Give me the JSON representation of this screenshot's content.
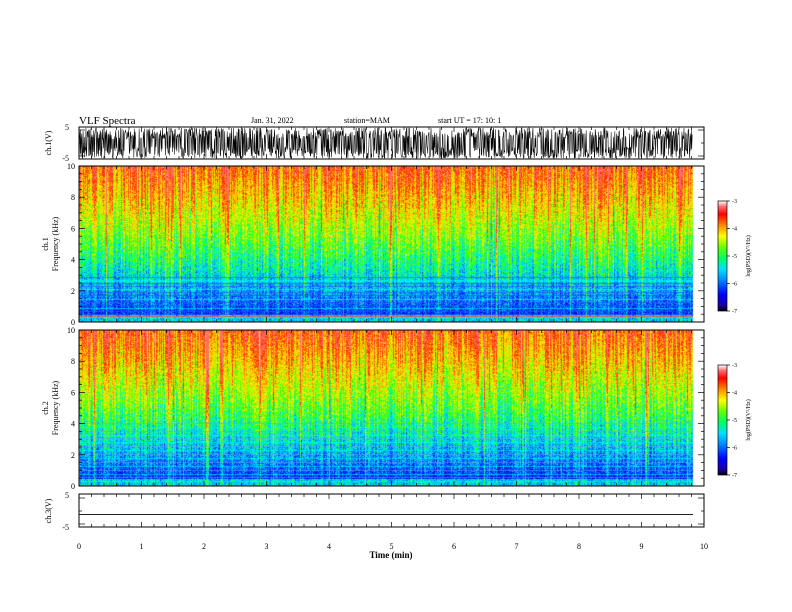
{
  "header": {
    "title": "VLF Spectra",
    "date": "Jan. 31, 2022",
    "station": "station=MAM",
    "start": "start UT =   17: 10: 1"
  },
  "chart_data": [
    {
      "type": "line",
      "panel": "ch1-waveform",
      "ylabel": "ch.1(V)",
      "ylim": [
        -5,
        5
      ],
      "yticks": [
        "5",
        "-5"
      ],
      "xlim": [
        0,
        10
      ],
      "description_color": "#000000"
    },
    {
      "type": "heatmap",
      "panel": "ch1-spectrogram",
      "ylabel_top": "ch.1",
      "ylabel": "Frequency (kHz)",
      "ylim": [
        0,
        10
      ],
      "yticks": [
        "0",
        "2",
        "4",
        "6",
        "8",
        "10"
      ],
      "xlim": [
        0,
        10
      ],
      "colorbar_label": "log(PSD)(V²/Hz)",
      "colorbar_range": [
        -7,
        -3
      ],
      "colorbar_ticks": [
        "-3",
        "-4",
        "-5",
        "-6",
        "-7"
      ]
    },
    {
      "type": "heatmap",
      "panel": "ch2-spectrogram",
      "ylabel_top": "ch.2",
      "ylabel": "Frequency (kHz)",
      "ylim": [
        0,
        10
      ],
      "yticks": [
        "0",
        "2",
        "4",
        "6",
        "8",
        "10"
      ],
      "xlim": [
        0,
        10
      ],
      "colorbar_label": "log(PSD)(V²/Hz)",
      "colorbar_range": [
        -7,
        -3
      ],
      "colorbar_ticks": [
        "-3",
        "-4",
        "-5",
        "-6",
        "-7"
      ]
    },
    {
      "type": "line",
      "panel": "ch3-waveform",
      "ylabel": "ch.3(V)",
      "ylim": [
        -5,
        5
      ],
      "yticks": [
        "5",
        "-5"
      ],
      "xlim": [
        0,
        10
      ],
      "xlabel": "Time (min)",
      "xticks": [
        "0",
        "1",
        "2",
        "3",
        "4",
        "5",
        "6",
        "7",
        "8",
        "9",
        "10"
      ],
      "constant_value": -1.2
    }
  ]
}
